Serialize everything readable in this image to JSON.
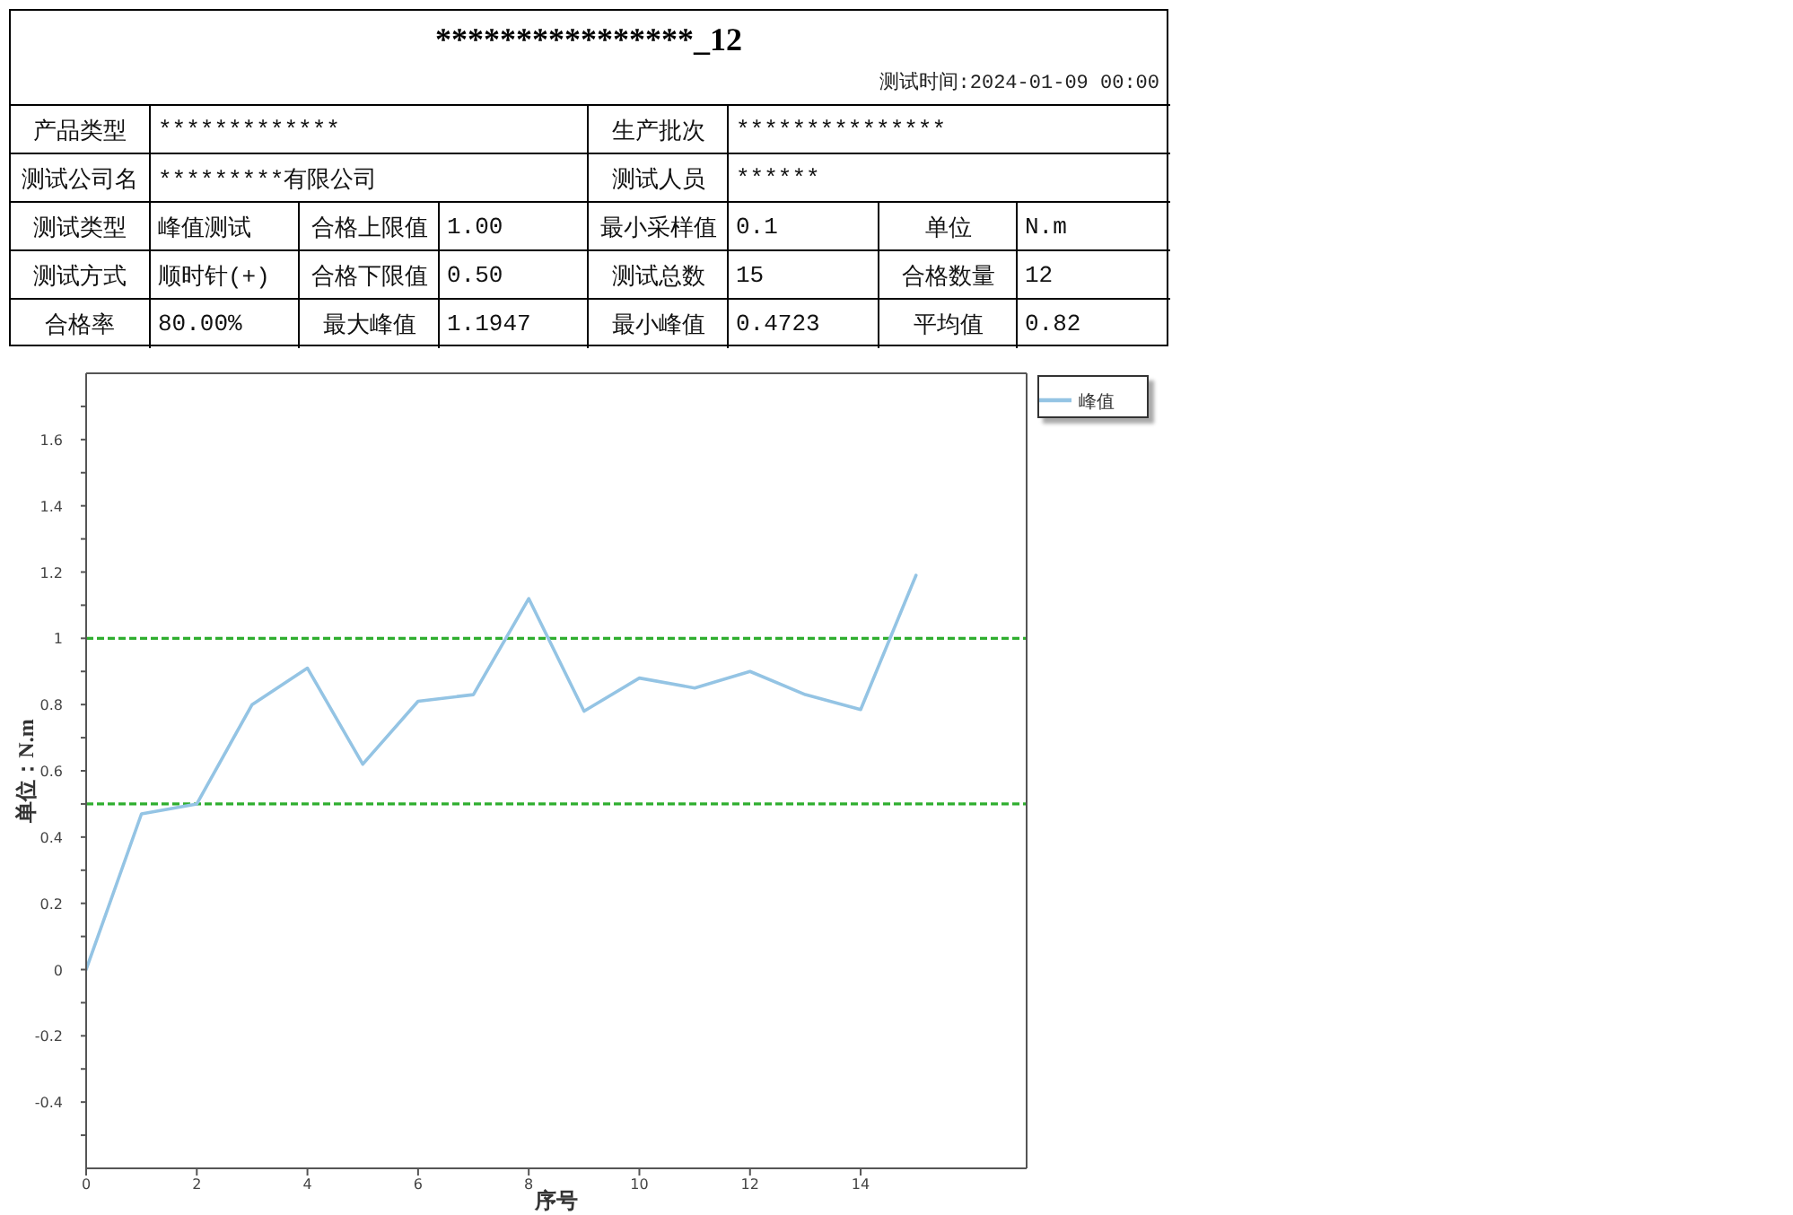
{
  "chart_data": [
    {
      "type": "other",
      "title": "****************_12",
      "subtitle": "测试时间:2024-01-09 00:00",
      "annotations": [
        "产品类型",
        "*************",
        "生产批次",
        "***************",
        "测试公司名",
        "*********有限公司",
        "测试人员",
        "******",
        "测试类型",
        "峰值测试",
        "合格上限值",
        "1.00",
        "最小采样值",
        "0.1",
        "单位",
        "N.m",
        "测试方式",
        "顺时针(+)",
        "合格下限值",
        "0.50",
        "测试总数",
        "15",
        "合格数量",
        "12",
        "合格率",
        "80.00%",
        "最大峰值",
        "1.1947",
        "最小峰值",
        "0.4723",
        "平均值",
        "0.82"
      ]
    },
    {
      "type": "line",
      "xlabel": "序号",
      "ylabel": "单位：N.m",
      "x": [
        0,
        1,
        2,
        3,
        4,
        5,
        6,
        7,
        8,
        9,
        10,
        11,
        12,
        13,
        14,
        15
      ],
      "series": [
        {
          "name": "峰值",
          "color": "#94c4e4",
          "values": [
            0,
            0.47,
            0.5,
            0.8,
            0.91,
            0.62,
            0.81,
            0.83,
            1.12,
            0.78,
            0.88,
            0.85,
            0.9,
            0.83,
            0.785,
            1.19
          ]
        }
      ],
      "xlim": [
        0,
        17
      ],
      "xticks": [
        0,
        2,
        4,
        6,
        8,
        10,
        12,
        14
      ],
      "ylim": [
        -0.6,
        1.8
      ],
      "yticks": [
        {
          "value": -0.5,
          "label": null
        },
        -0.4,
        {
          "value": -0.3,
          "label": null
        },
        -0.2,
        {
          "value": -0.1,
          "label": null
        },
        0,
        {
          "value": 0.1,
          "label": null
        },
        0.2,
        {
          "value": 0.3,
          "label": null
        },
        0.4,
        {
          "value": 0.5,
          "label": null
        },
        0.6,
        {
          "value": 0.7,
          "label": null
        },
        0.8,
        {
          "value": 0.9,
          "label": null
        },
        1,
        {
          "value": 1.1,
          "label": null
        },
        1.2,
        {
          "value": 1.3,
          "label": null
        },
        1.4,
        {
          "value": 1.5,
          "label": null
        },
        1.6,
        {
          "value": 1.7,
          "label": null
        }
      ],
      "ref_lines": [
        {
          "axis": "y",
          "value": 1,
          "color": "#2fae2f",
          "line_style": "dashed"
        },
        {
          "axis": "y",
          "value": 0.5,
          "color": "#2fae2f",
          "line_style": "dashed"
        }
      ],
      "legend": "top right",
      "marker": "none"
    }
  ]
}
